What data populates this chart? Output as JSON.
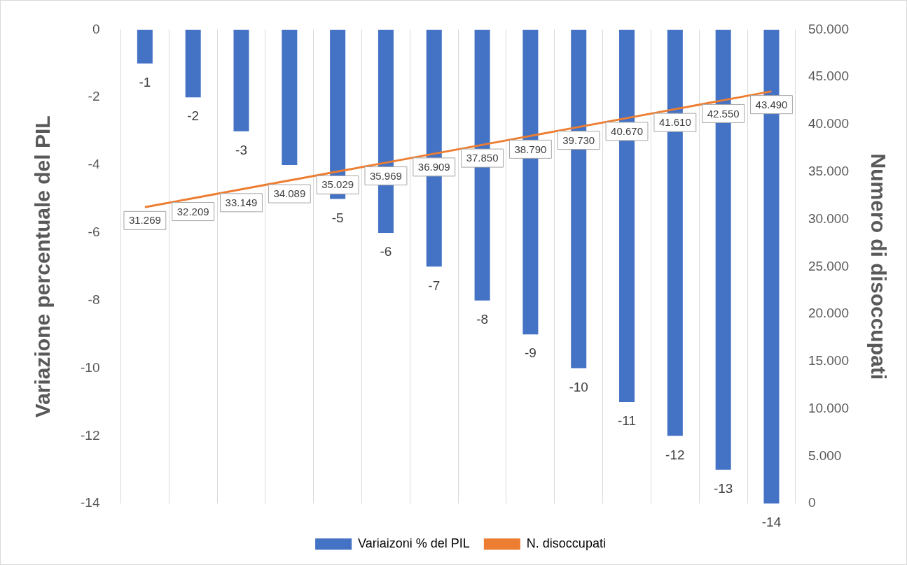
{
  "chart_data": {
    "type": "bar",
    "categories": [
      null,
      null,
      null,
      null,
      null,
      null,
      null,
      null,
      null,
      null,
      null,
      null,
      null,
      null
    ],
    "series": [
      {
        "name": "Variaizoni % del PIL",
        "color": "#4472c4",
        "values": [
          -1,
          -2,
          -3,
          -4,
          -5,
          -6,
          -7,
          -8,
          -9,
          -10,
          -11,
          -12,
          -13,
          -14
        ],
        "value_labels": [
          "-1",
          "-2",
          "-3",
          null,
          "-5",
          "-6",
          "-7",
          "-8",
          "-9",
          "-10",
          "-11",
          "-12",
          "-13",
          "-14"
        ]
      },
      {
        "name": "N. disoccupati",
        "type": "line",
        "axis": "y2",
        "color": "#ed7d31",
        "values": [
          31269,
          32209,
          33149,
          34089,
          35029,
          35969,
          36909,
          37850,
          38790,
          39730,
          40670,
          41610,
          42550,
          43490
        ],
        "value_labels": [
          "31.269",
          "32.209",
          "33.149",
          "34.089",
          "35.029",
          "35.969",
          "36.909",
          "37.850",
          "38.790",
          "39.730",
          "40.670",
          "41.610",
          "42.550",
          "43.490"
        ]
      }
    ],
    "ylabel": "Variazione percentuale del PIL",
    "y2label": "Numero di disoccupati",
    "ylim": [
      -14,
      0
    ],
    "yticks": [
      -14,
      -12,
      -10,
      -8,
      -6,
      -4,
      -2,
      0
    ],
    "y2lim": [
      0,
      50000
    ],
    "y2ticks": [
      0,
      {
        "value": 5000,
        "label": "5.000"
      },
      {
        "value": 10000,
        "label": "10.000"
      },
      {
        "value": 15000,
        "label": "15.000"
      },
      {
        "value": 20000,
        "label": "20.000"
      },
      {
        "value": 25000,
        "label": "25.000"
      },
      {
        "value": 30000,
        "label": "30.000"
      },
      {
        "value": 35000,
        "label": "35.000"
      },
      {
        "value": 40000,
        "label": "40.000"
      },
      {
        "value": 45000,
        "label": "45.000"
      },
      {
        "value": 50000,
        "label": "50.000"
      }
    ],
    "grid": "x",
    "legend": "bottom",
    "line_style": "solid"
  }
}
